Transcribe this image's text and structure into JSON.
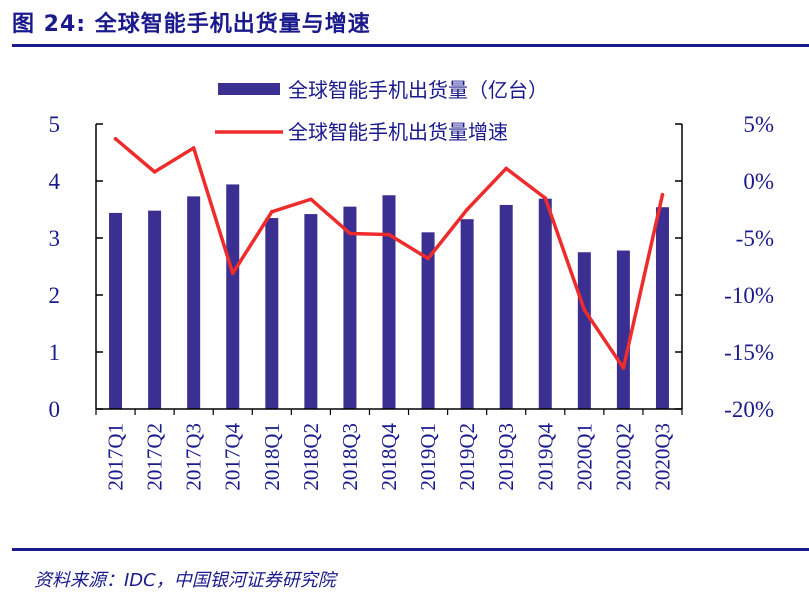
{
  "figure": {
    "title": "图 24:  全球智能手机出货量与增速",
    "source": "资料来源：IDC，中国银河证券研究院"
  },
  "colors": {
    "bar": "#3b2f91",
    "line": "#ee2c2c",
    "axis": "#000000",
    "text": "#1a1a8c"
  },
  "chart_data": {
    "type": "bar",
    "categories": [
      "2017Q1",
      "2017Q2",
      "2017Q3",
      "2017Q4",
      "2018Q1",
      "2018Q2",
      "2018Q3",
      "2018Q4",
      "2019Q1",
      "2019Q2",
      "2019Q3",
      "2019Q4",
      "2020Q1",
      "2020Q2",
      "2020Q3"
    ],
    "series": [
      {
        "name": "全球智能手机出货量（亿台）",
        "type": "bar",
        "axis": "left",
        "values": [
          3.44,
          3.48,
          3.73,
          3.94,
          3.35,
          3.42,
          3.55,
          3.75,
          3.1,
          3.33,
          3.58,
          3.69,
          2.75,
          2.78,
          3.54
        ]
      },
      {
        "name": "全球智能手机出货量增速",
        "type": "line",
        "axis": "right",
        "values": [
          3.7,
          0.8,
          2.9,
          -8.1,
          -2.7,
          -1.6,
          -4.6,
          -4.7,
          -6.8,
          -2.5,
          1.1,
          -1.5,
          -11.3,
          -16.4,
          -1.2
        ]
      }
    ],
    "y_left": {
      "min": 0,
      "max": 5,
      "ticks": [
        "0",
        "1",
        "2",
        "3",
        "4",
        "5"
      ]
    },
    "y_right": {
      "min": -20,
      "max": 5,
      "ticks": [
        "-20%",
        "-15%",
        "-10%",
        "-5%",
        "0%",
        "5%"
      ]
    },
    "legend_position": "top-center",
    "grid": false
  }
}
